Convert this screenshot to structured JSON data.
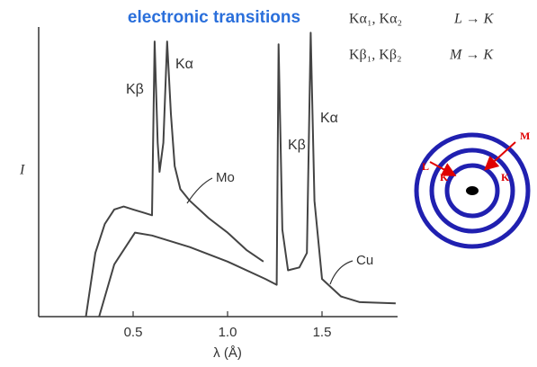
{
  "chart_data": {
    "type": "line",
    "title": "electronic transitions",
    "y_label": "I",
    "x_label": "λ (Å)",
    "xlim": [
      0,
      1.9
    ],
    "ylim": [
      0,
      100
    ],
    "xticks": [
      0.5,
      {
        "value": 1.0,
        "label": "1.0"
      },
      1.5
    ],
    "series": [
      {
        "name": "Mo",
        "color": "#444444",
        "x": [
          0.25,
          0.3,
          0.35,
          0.4,
          0.45,
          0.5,
          0.55,
          0.6,
          0.614,
          0.63,
          0.64,
          0.66,
          0.68,
          0.7,
          0.72,
          0.75,
          0.8,
          0.9,
          1.0,
          1.1,
          1.19
        ],
        "values": [
          0,
          22,
          32,
          37,
          38,
          37,
          36,
          35,
          95,
          60,
          50,
          60,
          95,
          70,
          52,
          44,
          40,
          34,
          29,
          23,
          19
        ]
      },
      {
        "name": "Cu",
        "color": "#444444",
        "x": [
          0.32,
          0.4,
          0.51,
          0.6,
          0.8,
          1.0,
          1.2,
          1.26,
          1.27,
          1.29,
          1.32,
          1.38,
          1.42,
          1.44,
          1.46,
          1.5,
          1.6,
          1.7,
          1.89
        ],
        "values": [
          0,
          18,
          29,
          28,
          24,
          19,
          13,
          11,
          94,
          30,
          16,
          17,
          22,
          98,
          40,
          13,
          7,
          5,
          4.6
        ]
      }
    ],
    "annotations": [
      "Kβ",
      "Kα",
      "Kβ",
      "Kα"
    ]
  },
  "transitions": [
    {
      "lines": "Kα₁, Kα₂",
      "shells": "L → K"
    },
    {
      "lines": "Kβ₁, Kβ₂",
      "shells": "M → K"
    }
  ],
  "atom": {
    "labels": [
      "M",
      "L",
      "K",
      "K"
    ]
  }
}
